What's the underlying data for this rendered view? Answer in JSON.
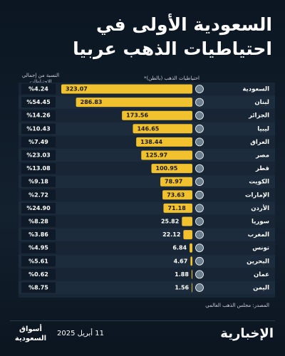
{
  "chart_data": {
    "type": "bar",
    "orientation": "horizontal",
    "title": "السعودية الأولى في احتياطيات الذهب عربيا",
    "value_label": "احتياطيات الذهب (بالطن)*",
    "share_header": "النسبة من إجمالي الاحتياطات",
    "categories": [
      "السعودية",
      "لبنان",
      "الجزائر",
      "ليبيا",
      "العراق",
      "مصر",
      "قطر",
      "الكويت",
      "الإمارات",
      "الأردن",
      "سوريا",
      "المغرب",
      "تونس",
      "البحرين",
      "عمان",
      "اليمن"
    ],
    "values": [
      323.07,
      286.83,
      173.56,
      146.65,
      138.44,
      125.97,
      100.95,
      78.97,
      73.63,
      71.18,
      25.82,
      22.12,
      6.84,
      4.67,
      1.88,
      1.56
    ],
    "shares": [
      "%4.24",
      "%54.45",
      "%14.26",
      "%10.43",
      "%7.49",
      "%23.03",
      "%13.08",
      "%9.18",
      "%2.72",
      "%24.90",
      "%8.28",
      "%3.86",
      "%4.95",
      "%5.61",
      "%0.62",
      "%8.75"
    ],
    "color": "#f2c12e",
    "source": "المصدر: مجلس الذهب العالمي"
  },
  "footer": {
    "brand": "الإخبارية",
    "date": "11 أبريل 2025",
    "section": "أسواق السعودية"
  }
}
